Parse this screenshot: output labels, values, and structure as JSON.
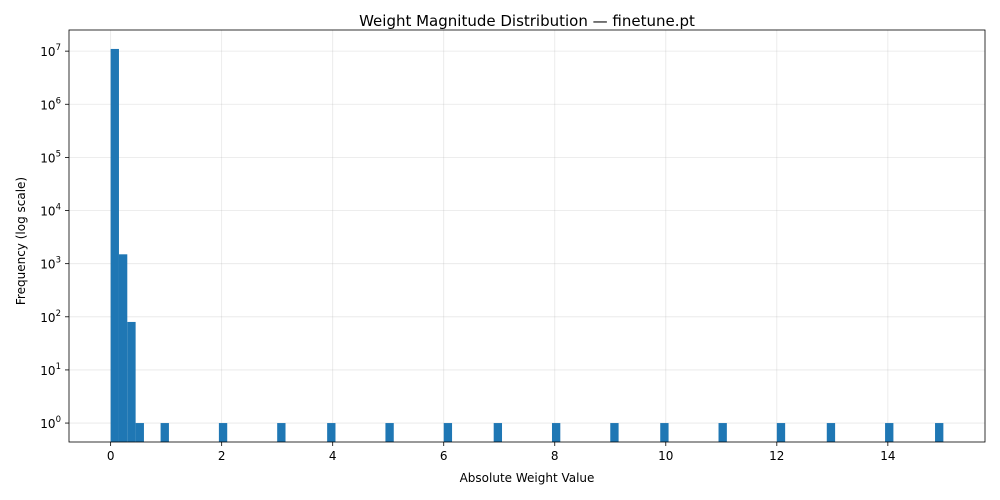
{
  "chart_data": {
    "type": "bar",
    "title": "Weight Magnitude Distribution — finetune.pt",
    "xlabel": "Absolute Weight Value",
    "ylabel": "Frequency (log scale)",
    "xlim": [
      -0.75,
      15.75
    ],
    "ylim": [
      0.44,
      25000000
    ],
    "y_scale": "log",
    "grid": true,
    "bar_color": "#1f77b4",
    "bin_width": 0.15,
    "x_ticks": [
      0,
      2,
      4,
      6,
      8,
      10,
      12,
      14
    ],
    "x_tick_labels": [
      "0",
      "2",
      "4",
      "6",
      "8",
      "10",
      "12",
      "14"
    ],
    "y_ticks": [
      1,
      10,
      100,
      1000,
      10000,
      100000,
      1000000,
      10000000
    ],
    "y_tick_labels": [
      {
        "base": "10",
        "exp": "0"
      },
      {
        "base": "10",
        "exp": "1"
      },
      {
        "base": "10",
        "exp": "2"
      },
      {
        "base": "10",
        "exp": "3"
      },
      {
        "base": "10",
        "exp": "4"
      },
      {
        "base": "10",
        "exp": "5"
      },
      {
        "base": "10",
        "exp": "6"
      },
      {
        "base": "10",
        "exp": "7"
      }
    ],
    "bins": [
      {
        "start": 0.0,
        "count": 11000000
      },
      {
        "start": 0.15,
        "count": 1500
      },
      {
        "start": 0.3,
        "count": 80
      },
      {
        "start": 0.45,
        "count": 1
      },
      {
        "start": 0.9,
        "count": 1
      },
      {
        "start": 1.95,
        "count": 1
      },
      {
        "start": 3.0,
        "count": 1
      },
      {
        "start": 3.9,
        "count": 1
      },
      {
        "start": 4.95,
        "count": 1
      },
      {
        "start": 6.0,
        "count": 1
      },
      {
        "start": 6.9,
        "count": 1
      },
      {
        "start": 7.95,
        "count": 1
      },
      {
        "start": 9.0,
        "count": 1
      },
      {
        "start": 9.9,
        "count": 1
      },
      {
        "start": 10.95,
        "count": 1
      },
      {
        "start": 12.0,
        "count": 1
      },
      {
        "start": 12.9,
        "count": 1
      },
      {
        "start": 13.95,
        "count": 1
      },
      {
        "start": 14.85,
        "count": 1
      }
    ]
  }
}
